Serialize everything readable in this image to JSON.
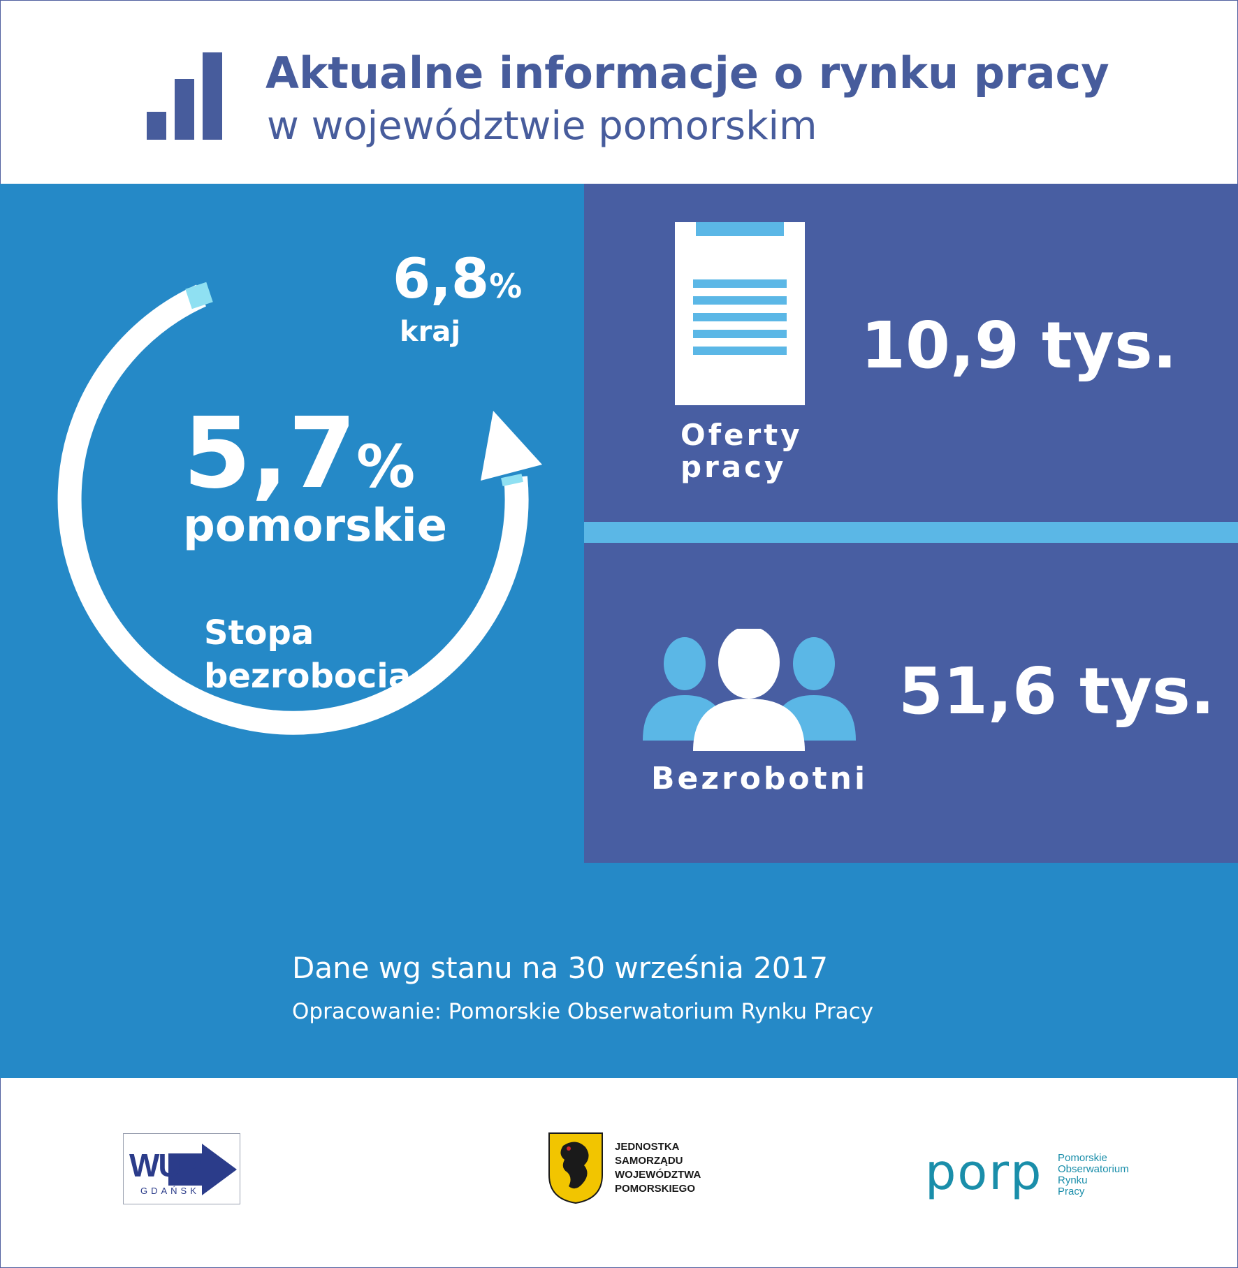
{
  "header": {
    "title": "Aktualne informacje o rynku pracy",
    "subtitle": "w województwie pomorskim",
    "icon": "bar-chart-icon"
  },
  "unemployment_rate": {
    "national_value": "6,8",
    "national_unit": "%",
    "national_label": "kraj",
    "regional_value": "5,7",
    "regional_unit": "%",
    "regional_label": "pomorskie",
    "caption": "Stopa bezrobocia"
  },
  "job_offers": {
    "value": "10,9 tys.",
    "label": "Oferty pracy",
    "icon": "document-icon"
  },
  "unemployed": {
    "value": "51,6 tys.",
    "label": "Bezrobotni",
    "icon": "people-icon"
  },
  "footer": {
    "date": "Dane wg stanu na 30 września 2017",
    "source": "Opracowanie: Pomorskie Obserwatorium Rynku Pracy"
  },
  "logos": {
    "wup": {
      "main": "WUP",
      "sub": "GDAŃSK"
    },
    "jsw": {
      "text": "JEDNOSTKA\nSAMORZĄDU\nWOJEWÓDZTWA\nPOMORSKIEGO"
    },
    "porp": {
      "main": "porp",
      "sub": "Pomorskie\nObserwatorium\nRynku\nPracy"
    }
  },
  "colors": {
    "brand_dark": "#485ea2",
    "brand_blue": "#2589c7",
    "accent_light": "#5bb7e6",
    "title_text": "#475c9c"
  }
}
